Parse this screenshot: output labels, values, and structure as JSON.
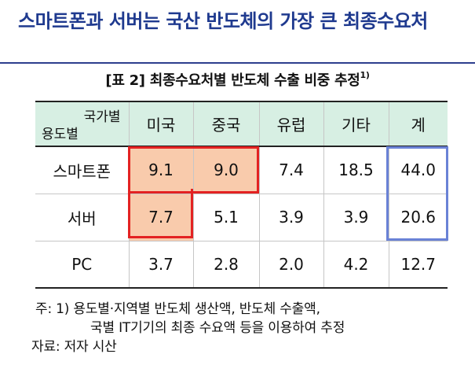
{
  "heading": "스마트폰과 서버는 국산 반도체의 가장 큰 최종수요처",
  "caption": {
    "text": "[표 2] 최종수요처별 반도체 수출 비중 추정",
    "sup": "1)"
  },
  "table": {
    "corner_top": "국가별",
    "corner_bottom": "용도별",
    "columns": [
      "미국",
      "중국",
      "유럽",
      "기타",
      "계"
    ],
    "rows": [
      {
        "label": "스마트폰",
        "values": [
          "9.1",
          "9.0",
          "7.4",
          "18.5",
          "44.0"
        ]
      },
      {
        "label": "서버",
        "values": [
          "7.7",
          "5.1",
          "3.9",
          "3.9",
          "20.6"
        ]
      },
      {
        "label": "PC",
        "values": [
          "3.7",
          "2.8",
          "2.0",
          "4.2",
          "12.7"
        ]
      }
    ]
  },
  "notes": {
    "line1": "주: 1) 용도별·지역별 반도체 생산액, 반도체 수출액,",
    "line2": "국별 IT기기의 최종 수요액 등을 이용하여 추정",
    "line3": "자료: 저자 시산"
  },
  "colors": {
    "heading": "#1f3a8f",
    "header_bg": "#d7efe3",
    "highlight_bg": "#f9cbac",
    "red_box": "#e32222",
    "blue_box": "#6a82d6"
  }
}
